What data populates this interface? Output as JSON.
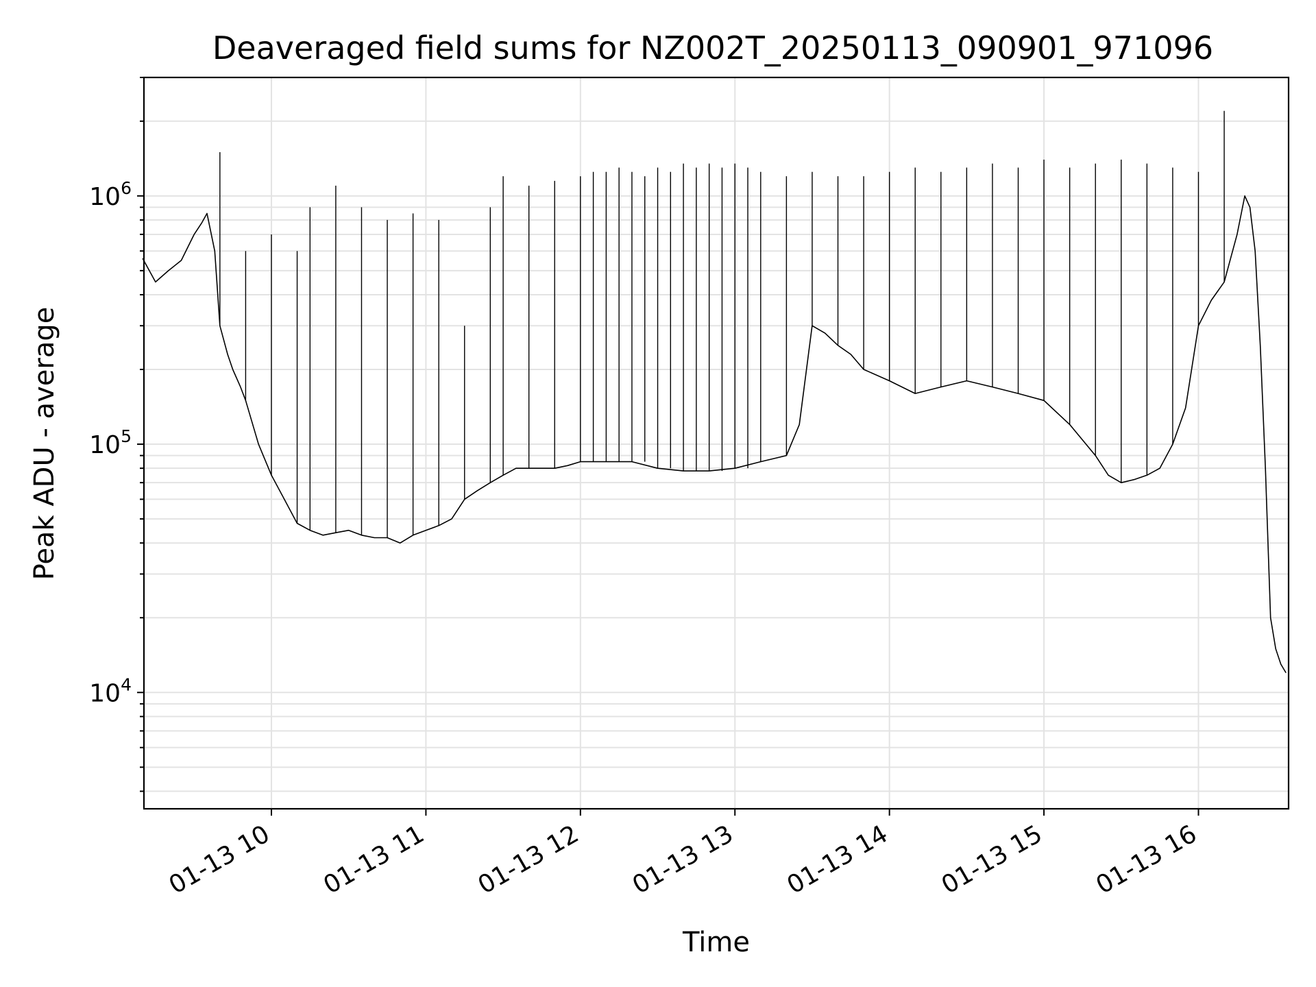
{
  "chart_data": {
    "type": "line",
    "title": "Deaveraged field sums for NZ002T_20250113_090901_971096",
    "xlabel": "Time",
    "ylabel": "Peak ADU - average",
    "yscale": "log",
    "ylim": [
      3400,
      3000000
    ],
    "xlim": [
      "01-13 09:10:30",
      "01-13 16:35:00"
    ],
    "grid": true,
    "x_ticks": [
      {
        "value": "01-13 10:00",
        "label": "01-13 10"
      },
      {
        "value": "01-13 11:00",
        "label": "01-13 11"
      },
      {
        "value": "01-13 12:00",
        "label": "01-13 12"
      },
      {
        "value": "01-13 13:00",
        "label": "01-13 13"
      },
      {
        "value": "01-13 14:00",
        "label": "01-13 14"
      },
      {
        "value": "01-13 15:00",
        "label": "01-13 15"
      },
      {
        "value": "01-13 16:00",
        "label": "01-13 16"
      }
    ],
    "y_ticks": [
      {
        "value": 10000,
        "base": "10",
        "exp": "4"
      },
      {
        "value": 100000,
        "base": "10",
        "exp": "5"
      },
      {
        "value": 1000000,
        "base": "10",
        "exp": "6"
      }
    ],
    "line_color": "#000000",
    "series": [
      {
        "x": [
          "09:10",
          "09:15",
          "09:20",
          "09:25",
          "09:30",
          "09:33",
          "09:35",
          "09:38",
          "09:40",
          "09:43",
          "09:45",
          "09:48",
          "09:50",
          "09:55",
          "10:00",
          "10:05",
          "10:10",
          "10:15",
          "10:20",
          "10:25",
          "10:30",
          "10:35",
          "10:40",
          "10:45",
          "10:50",
          "10:55",
          "11:00",
          "11:05",
          "11:10",
          "11:15",
          "11:20",
          "11:25",
          "11:30",
          "11:35",
          "11:40",
          "11:45",
          "11:50",
          "11:55",
          "12:00",
          "12:10",
          "12:20",
          "12:30",
          "12:40",
          "12:50",
          "13:00",
          "13:10",
          "13:20",
          "13:25",
          "13:30",
          "13:35",
          "13:40",
          "13:45",
          "13:50",
          "14:00",
          "14:10",
          "14:20",
          "14:30",
          "14:40",
          "14:50",
          "15:00",
          "15:10",
          "15:20",
          "15:25",
          "15:30",
          "15:35",
          "15:40",
          "15:45",
          "15:50",
          "15:55",
          "16:00",
          "16:05",
          "16:10",
          "16:15",
          "16:18",
          "16:20",
          "16:22",
          "16:24",
          "16:26",
          "16:28",
          "16:30",
          "16:32",
          "16:34"
        ],
        "y": [
          560000,
          450000,
          500000,
          550000,
          700000,
          780000,
          850000,
          600000,
          300000,
          230000,
          200000,
          170000,
          150000,
          100000,
          75000,
          60000,
          48000,
          45000,
          43000,
          44000,
          45000,
          43000,
          42000,
          42000,
          40000,
          43000,
          45000,
          47000,
          50000,
          60000,
          65000,
          70000,
          75000,
          80000,
          80000,
          80000,
          80000,
          82000,
          85000,
          85000,
          85000,
          80000,
          78000,
          78000,
          80000,
          85000,
          90000,
          120000,
          300000,
          280000,
          250000,
          230000,
          200000,
          180000,
          160000,
          170000,
          180000,
          170000,
          160000,
          150000,
          120000,
          90000,
          75000,
          70000,
          72000,
          75000,
          80000,
          100000,
          140000,
          300000,
          380000,
          450000,
          700000,
          1000000,
          900000,
          600000,
          250000,
          80000,
          20000,
          15000,
          13000,
          12000
        ]
      },
      {
        "name": "",
        "x": [
          "09:40",
          "09:50",
          "10:00",
          "10:10",
          "10:15",
          "10:25",
          "10:35",
          "10:45",
          "10:55",
          "11:05",
          "11:15",
          "11:25",
          "11:30",
          "11:40",
          "11:50",
          "12:00",
          "12:05",
          "12:10",
          "12:15",
          "12:20",
          "12:25",
          "12:30",
          "12:35",
          "12:40",
          "12:45",
          "12:50",
          "12:55",
          "13:00",
          "13:05",
          "13:10",
          "13:20",
          "13:30",
          "13:40",
          "13:50",
          "14:00",
          "14:10",
          "14:20",
          "14:30",
          "14:40",
          "14:50",
          "15:00",
          "15:10",
          "15:20",
          "15:30",
          "15:40",
          "15:50",
          "16:00",
          "16:10"
        ],
        "y": [
          1500000,
          600000,
          700000,
          600000,
          900000,
          1100000,
          900000,
          800000,
          850000,
          800000,
          300000,
          900000,
          1200000,
          1100000,
          1150000,
          1200000,
          1250000,
          1250000,
          1300000,
          1250000,
          1200000,
          1300000,
          1250000,
          1350000,
          1300000,
          1350000,
          1300000,
          1350000,
          1300000,
          1250000,
          1200000,
          1250000,
          1200000,
          1200000,
          1250000,
          1300000,
          1250000,
          1300000,
          1350000,
          1300000,
          1400000,
          1300000,
          1350000,
          1400000,
          1350000,
          1300000,
          1250000,
          2200000
        ]
      }
    ]
  }
}
